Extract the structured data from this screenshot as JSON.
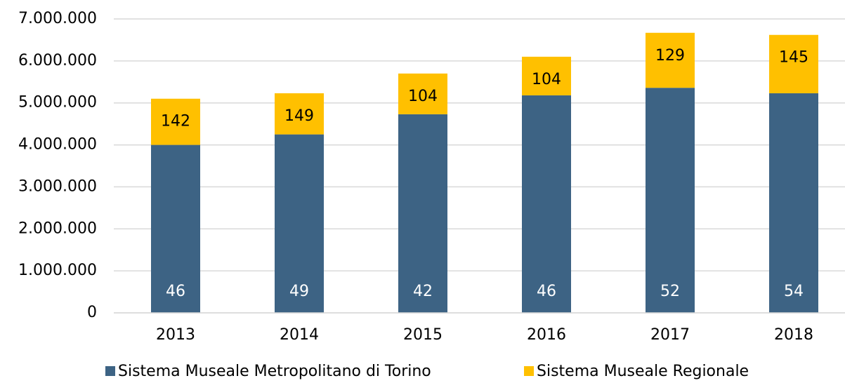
{
  "chart_data": {
    "type": "stacked_bar",
    "categories": [
      "2013",
      "2014",
      "2015",
      "2016",
      "2017",
      "2018"
    ],
    "series": [
      {
        "name": "Sistema Museale Metropolitano di Torino",
        "color": "#3d6384",
        "values": [
          4000000,
          4250000,
          4730000,
          5180000,
          5360000,
          5230000
        ],
        "labels": [
          46,
          49,
          42,
          46,
          52,
          54
        ]
      },
      {
        "name": "Sistema Museale Regionale",
        "color": "#ffc000",
        "values": [
          1100000,
          980000,
          970000,
          920000,
          1310000,
          1390000
        ],
        "labels": [
          142,
          149,
          104,
          104,
          129,
          145
        ]
      }
    ],
    "ylim": [
      0,
      7000000
    ],
    "yticks": [
      0,
      {
        "value": 1000000,
        "label": "1.000.000"
      },
      {
        "value": 2000000,
        "label": "2.000.000"
      },
      {
        "value": 3000000,
        "label": "3.000.000"
      },
      {
        "value": 4000000,
        "label": "4.000.000"
      },
      {
        "value": 5000000,
        "label": "5.000.000"
      },
      {
        "value": 6000000,
        "label": "6.000.000"
      },
      {
        "value": 7000000,
        "label": "7.000.000"
      }
    ],
    "grid": true,
    "legend": "bottom"
  }
}
